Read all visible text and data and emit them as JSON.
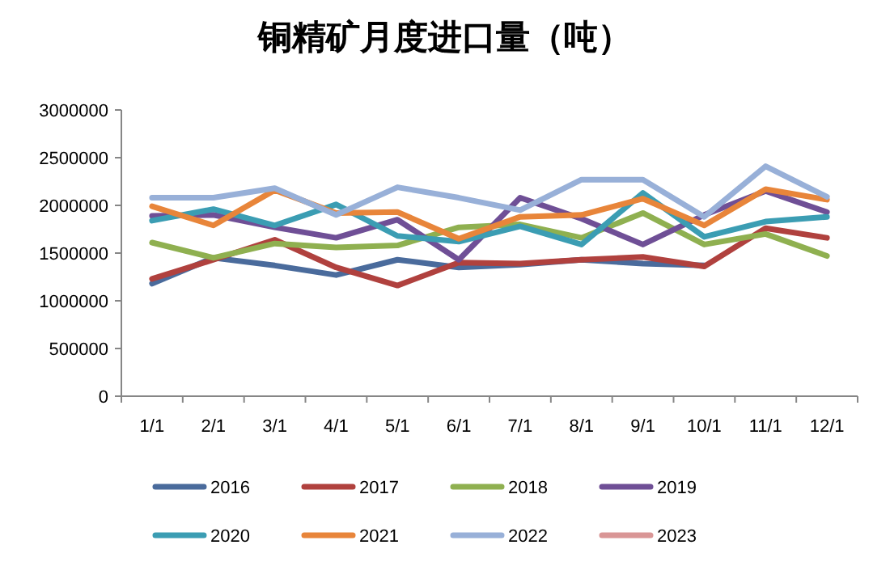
{
  "chart_data": {
    "type": "line",
    "title": "铜精矿月度进口量（吨）",
    "categories": [
      "1/1",
      "2/1",
      "3/1",
      "4/1",
      "5/1",
      "6/1",
      "7/1",
      "8/1",
      "9/1",
      "10/1",
      "11/1",
      "12/1"
    ],
    "ylim": [
      0,
      3000000
    ],
    "yticks": [
      0,
      500000,
      1000000,
      1500000,
      2000000,
      2500000,
      3000000
    ],
    "grid": false,
    "legend": "bottom",
    "marker": "none",
    "line_style": "solid",
    "series": [
      {
        "name": "2016",
        "color": "#4a6b9c",
        "values": [
          1180000,
          1450000,
          1370000,
          1270000,
          1430000,
          1350000,
          1380000,
          1430000,
          1390000,
          1370000,
          null,
          null
        ]
      },
      {
        "name": "2017",
        "color": "#b0413e",
        "values": [
          1230000,
          1430000,
          1640000,
          1350000,
          1160000,
          1400000,
          1390000,
          1430000,
          1460000,
          1360000,
          1760000,
          1660000
        ]
      },
      {
        "name": "2018",
        "color": "#8fb050",
        "values": [
          1610000,
          1450000,
          1600000,
          1560000,
          1580000,
          1770000,
          1800000,
          1660000,
          1920000,
          1590000,
          1700000,
          1470000
        ]
      },
      {
        "name": "2019",
        "color": "#6f4f96",
        "values": [
          1890000,
          1900000,
          1770000,
          1660000,
          1850000,
          1430000,
          2080000,
          1860000,
          1590000,
          1900000,
          2150000,
          1930000
        ]
      },
      {
        "name": "2020",
        "color": "#3b9db3",
        "values": [
          1840000,
          1960000,
          1790000,
          2010000,
          1680000,
          1620000,
          1780000,
          1590000,
          2130000,
          1670000,
          1830000,
          1880000
        ]
      },
      {
        "name": "2021",
        "color": "#e8853a",
        "values": [
          1990000,
          1790000,
          2160000,
          1920000,
          1930000,
          1650000,
          1880000,
          1900000,
          2070000,
          1790000,
          2170000,
          2060000
        ]
      },
      {
        "name": "2022",
        "color": "#98b0d8",
        "values": [
          2080000,
          2080000,
          2180000,
          1900000,
          2190000,
          2080000,
          1950000,
          2270000,
          2270000,
          1880000,
          2410000,
          2090000
        ]
      },
      {
        "name": "2023",
        "color": "#d99696",
        "values": [
          null,
          null,
          null,
          null,
          null,
          null,
          null,
          null,
          null,
          null,
          null,
          null
        ]
      }
    ]
  }
}
